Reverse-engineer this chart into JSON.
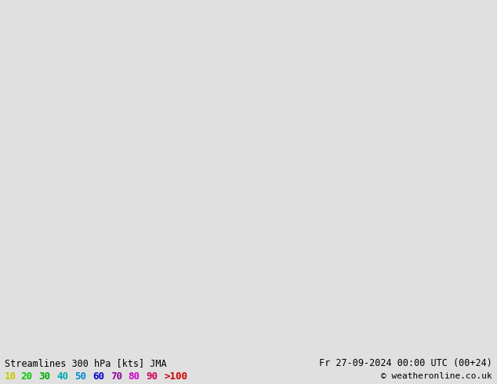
{
  "title_left": "Streamlines 300 hPa [kts] JMA",
  "title_right": "Fr 27-09-2024 00:00 UTC (00+24)",
  "copyright": "© weatheronline.co.uk",
  "legend_values": [
    "10",
    "20",
    "30",
    "40",
    "50",
    "60",
    "70",
    "80",
    "90",
    ">100"
  ],
  "legend_colors": [
    "#c8c800",
    "#00c800",
    "#00aa00",
    "#00aaaa",
    "#0088cc",
    "#0000cc",
    "#880099",
    "#cc00cc",
    "#cc0055",
    "#cc0000"
  ],
  "background_color": "#d8d8d8",
  "land_color": "#b0e890",
  "mountain_color": "#aaaaaa",
  "water_color": "#d8d8d8",
  "border_color": "#555555",
  "coast_color": "#555555",
  "text_color": "#000000",
  "figsize": [
    6.34,
    4.9
  ],
  "dpi": 100,
  "bottom_bar_color": "#e0e0e0",
  "map_extent": [
    -175,
    -40,
    15,
    80
  ],
  "speed_thresholds": [
    10,
    20,
    30,
    40,
    50,
    60,
    70,
    80,
    90,
    100
  ],
  "speed_colors": [
    "#c8c800",
    "#00c800",
    "#00aa00",
    "#00aaaa",
    "#0088cc",
    "#0000cc",
    "#880099",
    "#cc00cc",
    "#cc0055",
    "#cc0000"
  ]
}
